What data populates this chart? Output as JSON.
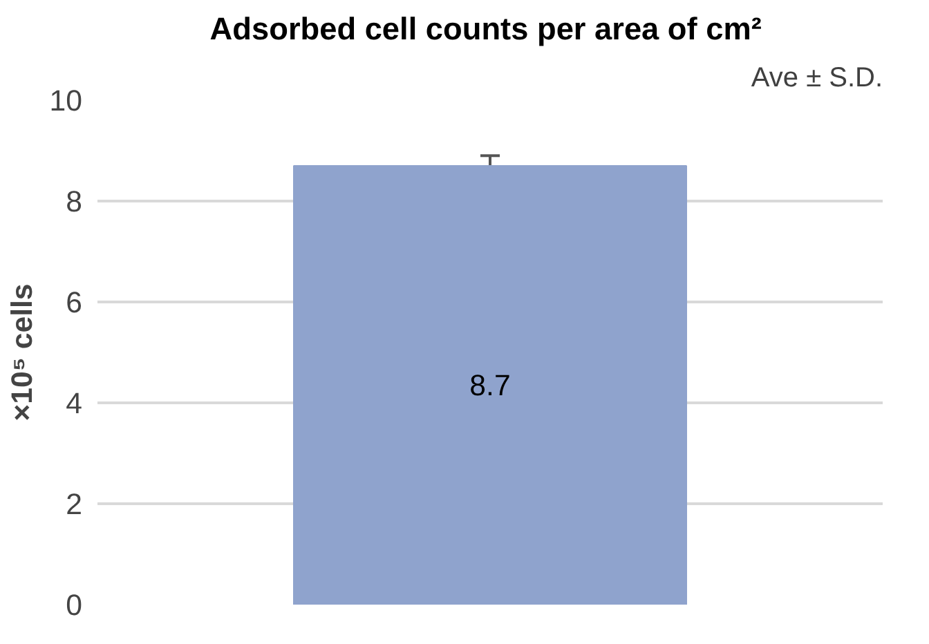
{
  "chart_data": {
    "type": "bar",
    "title": "Adsorbed cell counts per  area of cm²",
    "ylabel": "×10⁵ cells",
    "annotations": [
      "Ave ± S.D."
    ],
    "categories": [
      null
    ],
    "values": [
      8.7
    ],
    "errors": [
      0.2
    ],
    "color": "#8fa3cd",
    "ylim": [
      0,
      10
    ],
    "yticks": [
      0,
      2,
      4,
      6,
      8,
      10
    ],
    "grid": "y",
    "data_labels": true
  }
}
